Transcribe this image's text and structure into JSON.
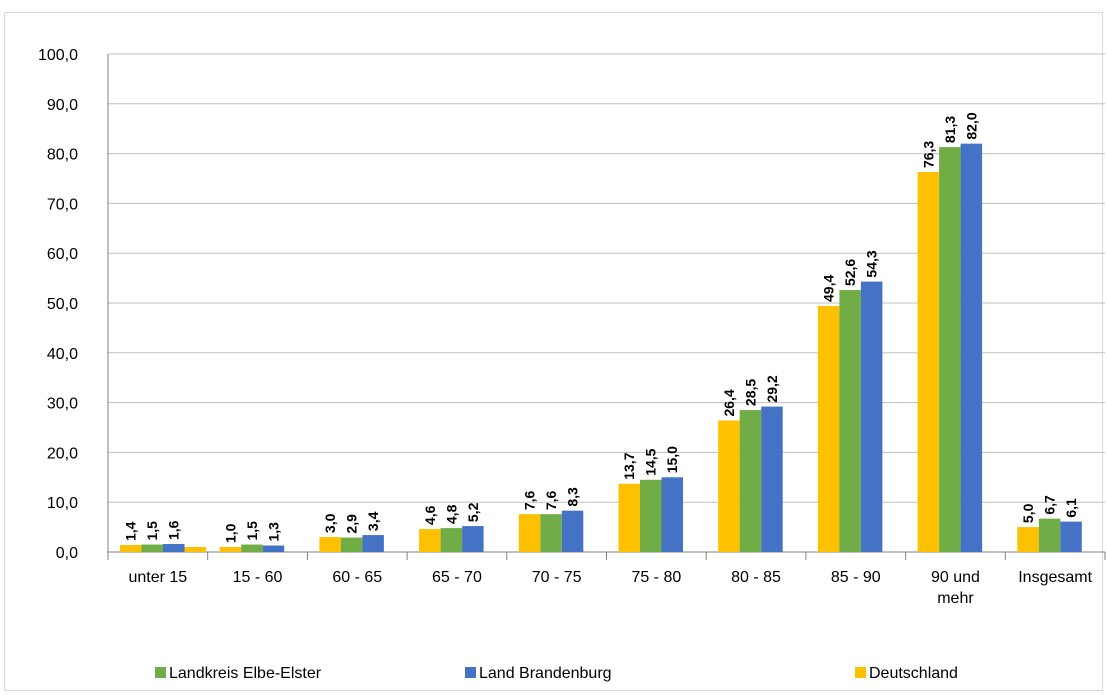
{
  "chart_data": {
    "type": "bar",
    "title": "",
    "xlabel": "",
    "ylabel": "",
    "ylim": [
      0,
      100
    ],
    "ytick_step": 10,
    "grid": true,
    "legend_position": "bottom",
    "categories": [
      [
        "unter 15"
      ],
      [
        "15 - 60"
      ],
      [
        "60 - 65"
      ],
      [
        "65 - 70"
      ],
      [
        "70 - 75"
      ],
      [
        "75 - 80"
      ],
      [
        "80 - 85"
      ],
      [
        "85 - 90"
      ],
      [
        "90  und",
        "mehr"
      ],
      [
        "Insgesamt"
      ]
    ],
    "series": [
      {
        "name": "Deutschland",
        "color": "#FFC000",
        "values": [
          1.4,
          1.0,
          3.0,
          4.6,
          7.6,
          13.7,
          26.4,
          49.4,
          76.3,
          5.0
        ]
      },
      {
        "name": "Landkreis Elbe-Elster",
        "color": "#70AD47",
        "values": [
          1.5,
          1.5,
          2.9,
          4.8,
          7.6,
          14.5,
          28.5,
          52.6,
          81.3,
          6.7
        ]
      },
      {
        "name": "Land Brandenburg",
        "color": "#4472C4",
        "values": [
          1.6,
          1.3,
          3.4,
          5.2,
          8.3,
          15.0,
          29.2,
          54.3,
          82.0,
          6.1
        ]
      }
    ],
    "extra_bar_unlabeled": {
      "category_index": 0,
      "color": "#FFC000",
      "value": 1.0
    },
    "legend_order": [
      "Landkreis Elbe-Elster",
      "Land Brandenburg",
      "Deutschland"
    ]
  }
}
